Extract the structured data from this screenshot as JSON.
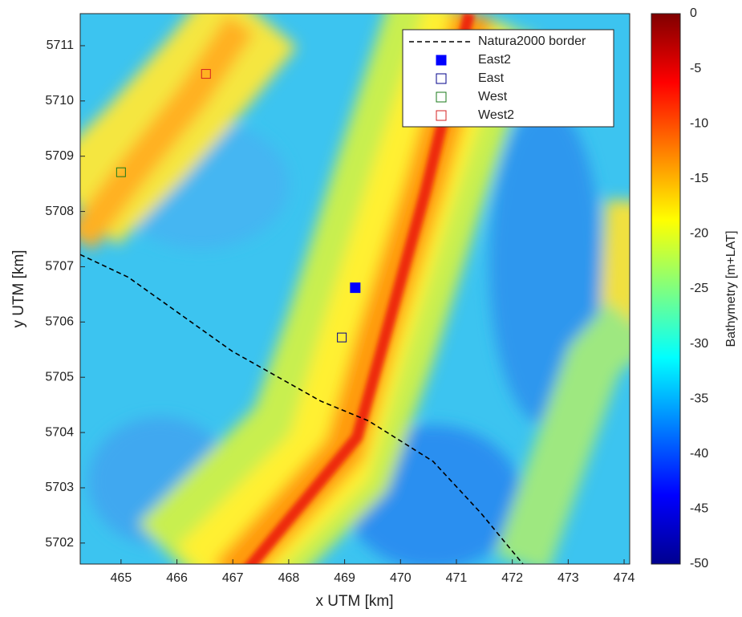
{
  "chart_data": {
    "type": "scatter",
    "xlabel": "x UTM [km]",
    "ylabel": "y UTM [km]",
    "xlim": [
      464.27,
      474.1
    ],
    "ylim": [
      5701.62,
      5711.58
    ],
    "xticks": [
      465,
      466,
      467,
      468,
      469,
      470,
      471,
      472,
      473,
      474
    ],
    "yticks": [
      5702,
      5703,
      5704,
      5705,
      5706,
      5707,
      5708,
      5709,
      5710,
      5711
    ],
    "series": [
      {
        "name": "Natura2000 border",
        "color": "#000000",
        "style": "dashed",
        "x": [
          464.27,
          465.13,
          466.99,
          468.57,
          469.43,
          470.58,
          471.44,
          472.19
        ],
        "y": [
          5707.22,
          5706.81,
          5705.47,
          5704.57,
          5704.21,
          5703.48,
          5702.54,
          5701.62
        ]
      },
      {
        "name": "East2",
        "color": "#0000ff",
        "style": "filled-square",
        "x": [
          469.19
        ],
        "y": [
          5706.62
        ]
      },
      {
        "name": "East",
        "color": "#00008b",
        "style": "open-square",
        "x": [
          468.95
        ],
        "y": [
          5705.72
        ]
      },
      {
        "name": "West",
        "color": "#1a7a1a",
        "style": "open-square",
        "x": [
          465.0
        ],
        "y": [
          5708.71
        ]
      },
      {
        "name": "West2",
        "color": "#d42020",
        "style": "open-square",
        "x": [
          466.52
        ],
        "y": [
          5710.49
        ]
      }
    ],
    "colorbar": {
      "label": "Bathymetry [m+LAT]",
      "lim": [
        -50,
        0
      ],
      "ticks": [
        0,
        -5,
        -10,
        -15,
        -20,
        -25,
        -30,
        -35,
        -40,
        -45,
        -50
      ]
    }
  }
}
